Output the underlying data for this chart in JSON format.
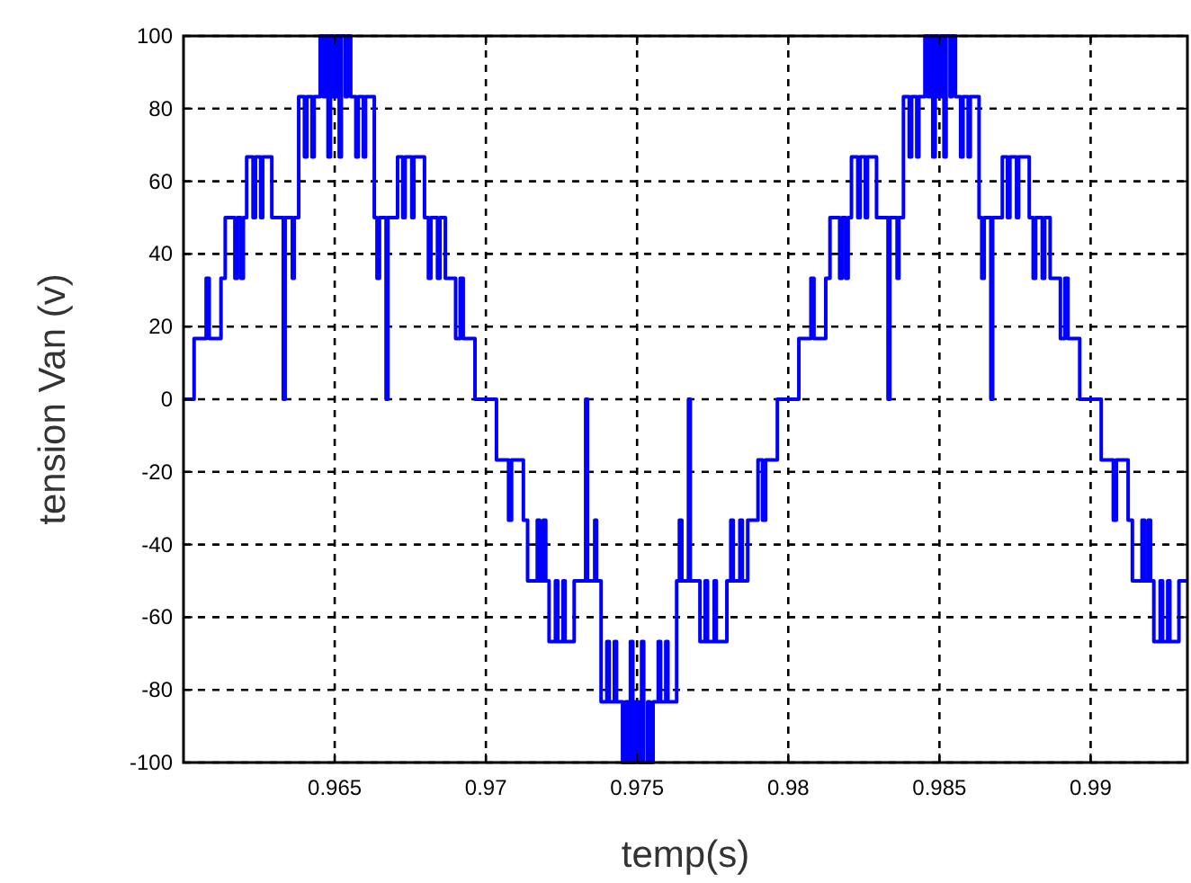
{
  "chart_data": {
    "type": "step",
    "xlabel": "temp(s)",
    "ylabel": "tension Van (v)",
    "xlim": [
      0.96,
      0.9932
    ],
    "xticks": [
      0.965,
      0.97,
      0.975,
      0.98,
      0.985,
      0.99
    ],
    "ylim": [
      -100,
      100
    ],
    "yticks": [
      -100,
      -80,
      -60,
      -40,
      -20,
      0,
      20,
      40,
      60,
      80,
      100
    ],
    "grid": true,
    "line_style": "solid",
    "series": [
      {
        "color": "#0000ff",
        "x": [
          0.96,
          0.96035,
          0.96075,
          0.96085,
          0.96124,
          0.96138,
          0.9617,
          0.96178,
          0.9619,
          0.96198,
          0.96209,
          0.9623,
          0.96238,
          0.96255,
          0.96262,
          0.96292,
          0.9633,
          0.96336,
          0.9636,
          0.96366,
          0.96381,
          0.964,
          0.96408,
          0.96425,
          0.96432,
          0.96452,
          0.96462,
          0.9647,
          0.96478,
          0.96486,
          0.96495,
          0.96505,
          0.96515,
          0.96522,
          0.96535,
          0.96542,
          0.96553,
          0.9657,
          0.96578,
          0.96595,
          0.96602,
          0.96631,
          0.9664,
          0.96648,
          0.9667,
          0.96676,
          0.96708,
          0.96725,
          0.96733,
          0.96755,
          0.96762,
          0.96797,
          0.9681,
          0.96818,
          0.9684,
          0.96848,
          0.96866,
          0.969,
          0.96915,
          0.96925,
          0.96964,
          0.97,
          0.97035,
          0.97075,
          0.97085,
          0.97124,
          0.97138,
          0.9717,
          0.97178,
          0.9719,
          0.97198,
          0.97209,
          0.9723,
          0.97238,
          0.97255,
          0.97262,
          0.97292,
          0.9733,
          0.97336,
          0.9736,
          0.97366,
          0.97381,
          0.974,
          0.97408,
          0.97425,
          0.97432,
          0.97452,
          0.97462,
          0.9747,
          0.97478,
          0.97486,
          0.97495,
          0.97505,
          0.97515,
          0.97522,
          0.97535,
          0.97542,
          0.97553,
          0.9757,
          0.97578,
          0.97595,
          0.97602,
          0.97631,
          0.9764,
          0.97648,
          0.9767,
          0.97676,
          0.97708,
          0.97725,
          0.97733,
          0.97755,
          0.97762,
          0.97797,
          0.9781,
          0.97818,
          0.9784,
          0.97848,
          0.97866,
          0.979,
          0.97915,
          0.97925,
          0.97964,
          0.98,
          0.98035,
          0.98075,
          0.98085,
          0.98124,
          0.98138,
          0.9817,
          0.98178,
          0.9819,
          0.98198,
          0.98209,
          0.9823,
          0.98238,
          0.98255,
          0.98262,
          0.98292,
          0.9833,
          0.98336,
          0.9836,
          0.98366,
          0.98381,
          0.984,
          0.98408,
          0.98425,
          0.98432,
          0.98452,
          0.98462,
          0.9847,
          0.98478,
          0.98486,
          0.98495,
          0.98505,
          0.98515,
          0.98522,
          0.98535,
          0.98542,
          0.98553,
          0.9857,
          0.98578,
          0.98595,
          0.98602,
          0.98631,
          0.9864,
          0.98648,
          0.9867,
          0.98676,
          0.98708,
          0.98725,
          0.98733,
          0.98755,
          0.98762,
          0.98797,
          0.9881,
          0.98818,
          0.9884,
          0.98848,
          0.98866,
          0.989,
          0.98915,
          0.98925,
          0.98964,
          0.99,
          0.99035,
          0.99075,
          0.99085,
          0.99124,
          0.99138,
          0.9917,
          0.99178,
          0.9919,
          0.99198,
          0.99209,
          0.9923,
          0.99238,
          0.99255,
          0.99262,
          0.99292,
          0.9932
        ],
        "values": [
          0,
          16.7,
          33.3,
          16.7,
          33.3,
          50,
          33.3,
          50,
          33.3,
          50,
          66.7,
          50,
          66.7,
          50,
          66.7,
          50,
          0,
          50,
          33.3,
          50,
          83.3,
          66.7,
          83.3,
          66.7,
          83.3,
          100,
          83.3,
          100,
          66.7,
          100,
          83.3,
          100,
          66.7,
          100,
          83.3,
          100,
          83.3,
          66.7,
          83.3,
          66.7,
          83.3,
          50,
          33.3,
          50,
          0,
          50,
          66.7,
          50,
          66.7,
          50,
          66.7,
          50,
          33.3,
          50,
          33.3,
          50,
          33.3,
          16.7,
          33.3,
          16.7,
          0,
          0,
          -16.7,
          -33.3,
          -16.7,
          -33.3,
          -50,
          -33.3,
          -50,
          -33.3,
          -50,
          -66.7,
          -50,
          -66.7,
          -50,
          -66.7,
          -50,
          0,
          -50,
          -33.3,
          -50,
          -83.3,
          -66.7,
          -83.3,
          -66.7,
          -83.3,
          -100,
          -83.3,
          -100,
          -66.7,
          -100,
          -83.3,
          -100,
          -66.7,
          -100,
          -83.3,
          -100,
          -83.3,
          -66.7,
          -83.3,
          -66.7,
          -83.3,
          -50,
          -33.3,
          -50,
          0,
          -50,
          -66.7,
          -50,
          -66.7,
          -50,
          -66.7,
          -50,
          -33.3,
          -50,
          -33.3,
          -50,
          -33.3,
          -16.7,
          -33.3,
          -16.7,
          0,
          0,
          16.7,
          33.3,
          16.7,
          33.3,
          50,
          33.3,
          50,
          33.3,
          50,
          66.7,
          50,
          66.7,
          50,
          66.7,
          50,
          0,
          50,
          33.3,
          50,
          83.3,
          66.7,
          83.3,
          66.7,
          83.3,
          100,
          83.3,
          100,
          66.7,
          100,
          83.3,
          100,
          66.7,
          100,
          83.3,
          100,
          83.3,
          66.7,
          83.3,
          66.7,
          83.3,
          50,
          33.3,
          50,
          0,
          50,
          66.7,
          50,
          66.7,
          50,
          66.7,
          50,
          33.3,
          50,
          33.3,
          50,
          33.3,
          16.7,
          33.3,
          16.7,
          0,
          0,
          -16.7,
          -33.3,
          -16.7,
          -33.3,
          -50,
          -33.3,
          -50,
          -33.3,
          -50,
          -66.7,
          -50,
          -66.7,
          -50,
          -66.7,
          -50,
          -50
        ]
      }
    ]
  }
}
